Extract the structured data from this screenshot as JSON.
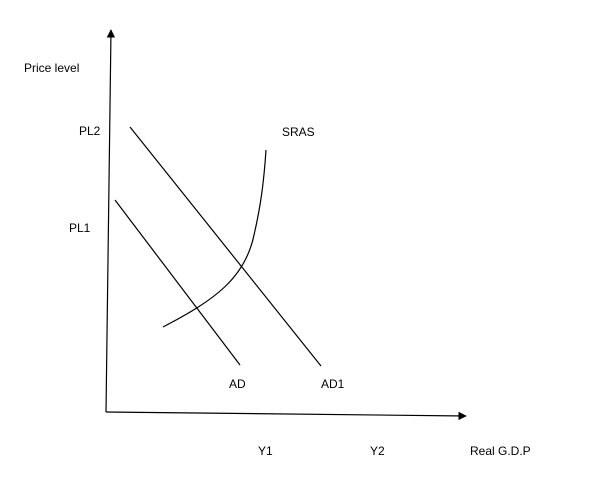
{
  "axes": {
    "y_label": "Price level",
    "x_label": "Real G.D.P"
  },
  "price_levels": [
    "PL2",
    "PL1"
  ],
  "outputs": [
    "Y1",
    "Y2"
  ],
  "curves": {
    "sras": "SRAS",
    "ad": "AD",
    "ad1": "AD1"
  }
}
